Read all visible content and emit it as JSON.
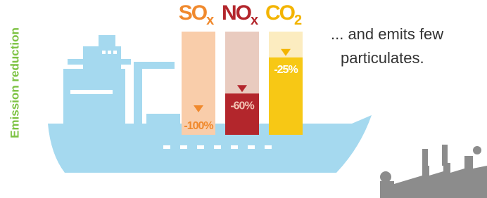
{
  "chart_data": {
    "type": "bar",
    "axis_label": "Emission reduction",
    "categories": [
      "SO",
      "NO",
      "CO"
    ],
    "category_subscripts": [
      "x",
      "x",
      "2"
    ],
    "values": [
      -100,
      -60,
      -25
    ],
    "value_labels": [
      "-100%",
      "-60%",
      "-25%"
    ],
    "ylim": [
      -100,
      0
    ],
    "colors": {
      "pale": [
        "#f9cdaa",
        "#e9cbbf",
        "#fcecc0"
      ],
      "strong": [
        "#f7931e",
        "#b3262c",
        "#f7c815"
      ],
      "label": [
        "#f0892d",
        "#b3262c",
        "#f3b400"
      ],
      "value_label": [
        "#f0892d",
        "#f2c4b4",
        "#ffffff"
      ]
    },
    "annotation": [
      "... and emits few",
      "particulates."
    ]
  }
}
